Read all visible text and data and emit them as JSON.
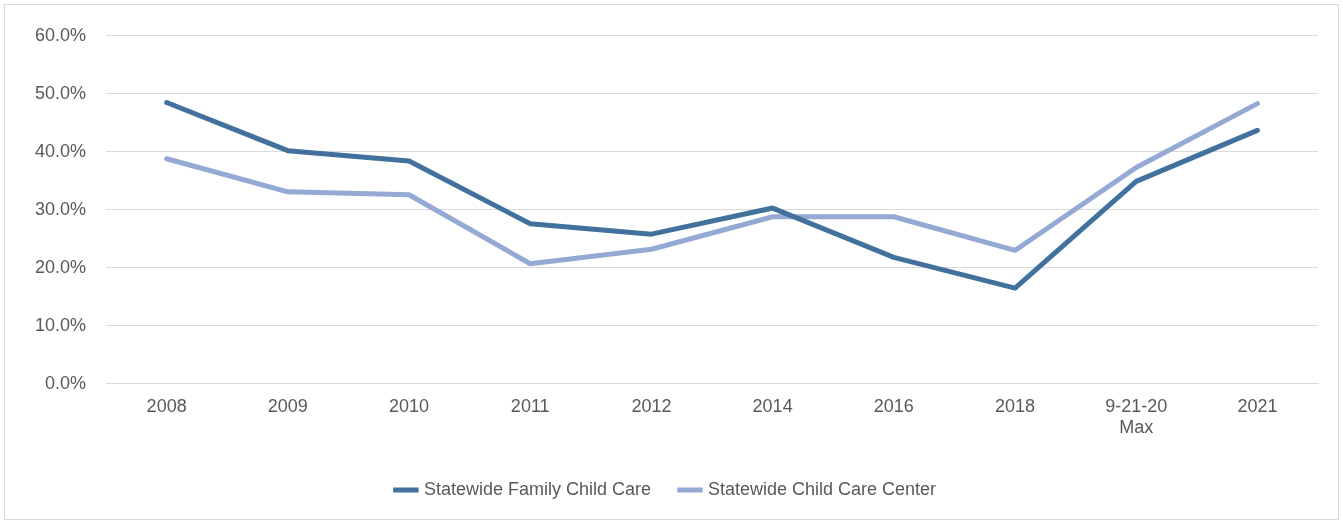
{
  "chart_data": {
    "type": "line",
    "categories": [
      "2008",
      "2009",
      "2010",
      "2011",
      "2012",
      "2014",
      "2016",
      "2018",
      "9-21-20\nMax",
      "2021"
    ],
    "series": [
      {
        "name": "Statewide Family Child Care",
        "color": "#41719c",
        "values": [
          48.5,
          40.2,
          38.4,
          27.6,
          25.8,
          30.3,
          21.8,
          16.5,
          34.9,
          43.7
        ]
      },
      {
        "name": "Statewide Child Care Center",
        "color": "#94a9d3",
        "values": [
          38.8,
          33.1,
          32.6,
          20.7,
          23.2,
          28.8,
          28.8,
          23.0,
          37.3,
          48.3
        ]
      }
    ],
    "ylim": [
      0,
      60
    ],
    "yticks": [
      {
        "value": 0,
        "label": "0.0%"
      },
      {
        "value": 10,
        "label": "10.0%"
      },
      {
        "value": 20,
        "label": "20.0%"
      },
      {
        "value": 30,
        "label": "30.0%"
      },
      {
        "value": 40,
        "label": "40.0%"
      },
      {
        "value": 50,
        "label": "50.0%"
      },
      {
        "value": 60,
        "label": "60.0%"
      }
    ],
    "grid": "y",
    "legend": "bottom",
    "marker": "none",
    "line_style": "solid"
  }
}
